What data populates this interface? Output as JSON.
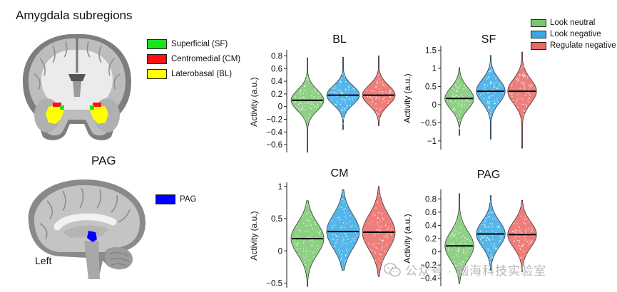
{
  "figure": {
    "amygdala_title": "Amygdala subregions",
    "pag_title": "PAG",
    "hemisphere_label": "Left",
    "amygdala_legend": [
      {
        "label": "Superficial (SF)",
        "color": "#1fe21f"
      },
      {
        "label": "Centromedial (CM)",
        "color": "#ff1010"
      },
      {
        "label": "Laterobasal (BL)",
        "color": "#ffff00"
      }
    ],
    "pag_legend": {
      "label": "PAG",
      "color": "#0000ff"
    },
    "condition_legend": [
      {
        "label": "Look neutral",
        "color": "#7ac86e"
      },
      {
        "label": "Look negative",
        "color": "#37a9e6"
      },
      {
        "label": "Regulate negative",
        "color": "#ea6763"
      }
    ]
  },
  "watermark": {
    "text": "公众号 · 脑海科技实验室"
  },
  "chart_data": [
    {
      "type": "violin",
      "title": "BL",
      "ylabel": "Activity (a.u.)",
      "ylim": [
        -0.7,
        0.85
      ],
      "yticks": [
        0.8,
        0.6,
        0.4,
        0.2,
        0,
        -0.2,
        -0.4,
        -0.6
      ],
      "ytick_labels": [
        "0.8",
        "0.6",
        "0.4",
        "0.2",
        "0",
        "−0.2",
        "−0.4",
        "−0.6"
      ],
      "series": [
        {
          "name": "Look neutral",
          "median": 0.1,
          "min": -0.72,
          "max": 0.77,
          "q1": 0.0,
          "q3": 0.22
        },
        {
          "name": "Look negative",
          "median": 0.18,
          "min": -0.36,
          "max": 0.78,
          "q1": 0.08,
          "q3": 0.28
        },
        {
          "name": "Regulate negative",
          "median": 0.18,
          "min": -0.3,
          "max": 0.8,
          "q1": 0.08,
          "q3": 0.29
        }
      ]
    },
    {
      "type": "violin",
      "title": "SF",
      "ylabel": "Activity (a.u.)",
      "ylim": [
        -1.2,
        1.55
      ],
      "yticks": [
        1.5,
        1,
        0.5,
        0,
        -0.5,
        -1
      ],
      "ytick_labels": [
        "1.5",
        "1",
        "0.5",
        "0",
        "−0.5",
        "−1"
      ],
      "series": [
        {
          "name": "Look neutral",
          "median": 0.17,
          "min": -0.85,
          "max": 1.02,
          "q1": -0.02,
          "q3": 0.38
        },
        {
          "name": "Look negative",
          "median": 0.37,
          "min": -0.95,
          "max": 1.36,
          "q1": 0.15,
          "q3": 0.58
        },
        {
          "name": "Regulate negative",
          "median": 0.37,
          "min": -1.2,
          "max": 1.45,
          "q1": 0.15,
          "q3": 0.6
        }
      ]
    },
    {
      "type": "violin",
      "title": "CM",
      "ylabel": "Activity (a.u.)",
      "ylim": [
        -0.55,
        1.02
      ],
      "yticks": [
        1,
        0.5,
        0,
        -0.5
      ],
      "ytick_labels": [
        "1",
        "0.5",
        "0",
        "−0.5"
      ],
      "series": [
        {
          "name": "Look neutral",
          "median": 0.19,
          "min": -0.55,
          "max": 0.78,
          "q1": 0.03,
          "q3": 0.36
        },
        {
          "name": "Look negative",
          "median": 0.3,
          "min": -0.3,
          "max": 0.95,
          "q1": 0.12,
          "q3": 0.47
        },
        {
          "name": "Regulate negative",
          "median": 0.29,
          "min": -0.4,
          "max": 1.0,
          "q1": 0.11,
          "q3": 0.47
        }
      ]
    },
    {
      "type": "violin",
      "title": "PAG",
      "ylabel": "Activity (a.u.)",
      "ylim": [
        -0.5,
        0.9
      ],
      "yticks": [
        0.8,
        0.6,
        0.4,
        0.2,
        0,
        -0.2,
        -0.4
      ],
      "ytick_labels": [
        "0.8",
        "0.6",
        "0.4",
        "0.2",
        "0",
        "−0.2",
        "−0.4"
      ],
      "series": [
        {
          "name": "Look neutral",
          "median": 0.09,
          "min": -0.48,
          "max": 0.88,
          "q1": -0.04,
          "q3": 0.25
        },
        {
          "name": "Look negative",
          "median": 0.27,
          "min": -0.28,
          "max": 0.85,
          "q1": 0.14,
          "q3": 0.4
        },
        {
          "name": "Regulate negative",
          "median": 0.26,
          "min": -0.3,
          "max": 0.78,
          "q1": 0.13,
          "q3": 0.39
        }
      ]
    }
  ]
}
